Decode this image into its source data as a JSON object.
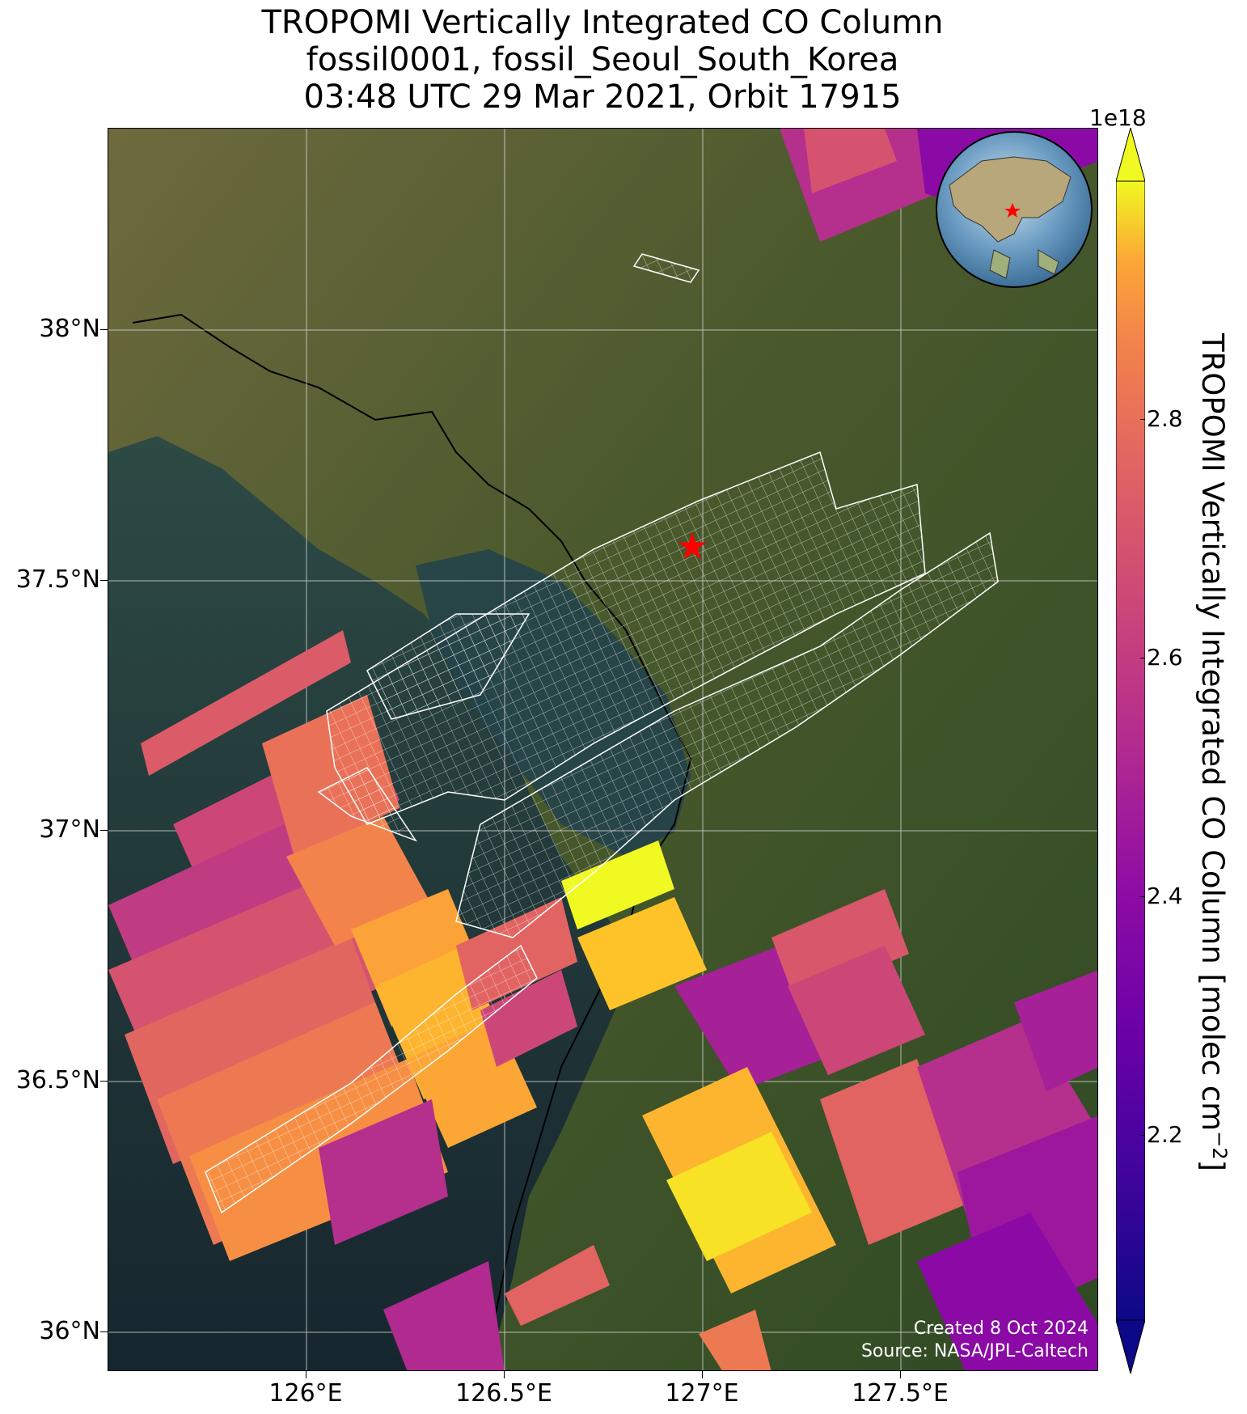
{
  "title": {
    "line1": "TROPOMI Vertically Integrated CO Column",
    "line2": "fossil0001, fossil_Seoul_South_Korea",
    "line3": "03:48 UTC 29 Mar 2021, Orbit 17915"
  },
  "map": {
    "extent_lon": [
      125.5,
      128.0
    ],
    "extent_lat": [
      35.9,
      38.4
    ],
    "lat_ticks": [
      "38°N",
      "37.5°N",
      "37°N",
      "36.5°N",
      "36°N"
    ],
    "lon_ticks": [
      "126°E",
      "126.5°E",
      "127°E",
      "127.5°E"
    ],
    "target_marker": {
      "lon": 126.98,
      "lat": 37.57,
      "color": "#ff0000",
      "icon": "star-icon"
    },
    "basemap": "satellite-imagery",
    "inset_globe": {
      "center": "East Asia",
      "marker_icon": "star-icon",
      "marker_color": "#ff0000"
    }
  },
  "colorbar": {
    "label": "TROPOMI Vertically Integrated CO Column [molec cm",
    "label_sup": "−2",
    "label_end": "]",
    "exponent": "1e18",
    "ticks": [
      "2.8",
      "2.6",
      "2.4",
      "2.2"
    ],
    "range": [
      2.0,
      3.0
    ],
    "colormap": "plasma",
    "extend": "both"
  },
  "credits": {
    "created": "Created 8 Oct 2024",
    "source": "Source: NASA/JPL-Caltech"
  },
  "colors": {
    "plasma_dark": "#0d0887",
    "plasma_purple": "#9c179e",
    "plasma_pink": "#cc4778",
    "plasma_orange": "#ed7953",
    "plasma_gold": "#fdb42f",
    "plasma_yellow": "#f0f921",
    "land": "#4a5a2c",
    "sea": "#1f3a44"
  }
}
